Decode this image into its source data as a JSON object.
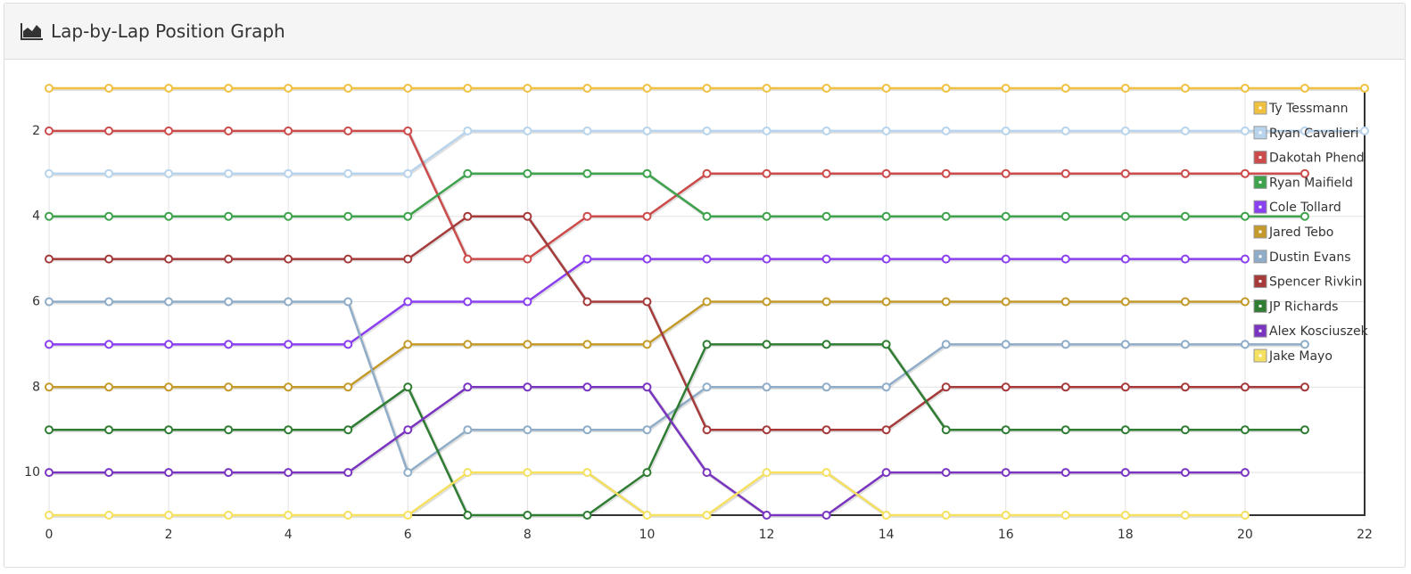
{
  "chart_data": {
    "type": "line",
    "title": "Lap-by-Lap Position Graph",
    "x": [
      0,
      1,
      2,
      3,
      4,
      5,
      6,
      7,
      8,
      9,
      10,
      11,
      12,
      13,
      14,
      15,
      16,
      17,
      18,
      19,
      20,
      21,
      22
    ],
    "xlim": [
      0,
      22
    ],
    "xticks": [
      0,
      2,
      4,
      6,
      8,
      10,
      12,
      14,
      16,
      18,
      20,
      22
    ],
    "ylim": [
      1,
      11
    ],
    "yticks": [
      2,
      4,
      6,
      8,
      10
    ],
    "y_reversed": true,
    "grid": true,
    "legend": "top-right",
    "series": [
      {
        "name": "Ty Tessmann",
        "color": "#f0c040",
        "values": [
          1,
          1,
          1,
          1,
          1,
          1,
          1,
          1,
          1,
          1,
          1,
          1,
          1,
          1,
          1,
          1,
          1,
          1,
          1,
          1,
          1,
          1,
          1
        ]
      },
      {
        "name": "Ryan Cavalieri",
        "color": "#b8d4ec",
        "values": [
          3,
          3,
          3,
          3,
          3,
          3,
          3,
          2,
          2,
          2,
          2,
          2,
          2,
          2,
          2,
          2,
          2,
          2,
          2,
          2,
          2,
          2,
          2
        ]
      },
      {
        "name": "Dakotah Phend",
        "color": "#cc4b4b",
        "values": [
          2,
          2,
          2,
          2,
          2,
          2,
          2,
          5,
          5,
          4,
          4,
          3,
          3,
          3,
          3,
          3,
          3,
          3,
          3,
          3,
          3,
          3,
          null
        ]
      },
      {
        "name": "Ryan Maifield",
        "color": "#3fa34d",
        "values": [
          4,
          4,
          4,
          4,
          4,
          4,
          4,
          3,
          3,
          3,
          3,
          4,
          4,
          4,
          4,
          4,
          4,
          4,
          4,
          4,
          4,
          4,
          null
        ]
      },
      {
        "name": "Cole Tollard",
        "color": "#8a3ff0",
        "values": [
          7,
          7,
          7,
          7,
          7,
          7,
          6,
          6,
          6,
          5,
          5,
          5,
          5,
          5,
          5,
          5,
          5,
          5,
          5,
          5,
          5,
          null,
          null
        ]
      },
      {
        "name": "Jared Tebo",
        "color": "#c49a2a",
        "values": [
          8,
          8,
          8,
          8,
          8,
          8,
          7,
          7,
          7,
          7,
          7,
          6,
          6,
          6,
          6,
          6,
          6,
          6,
          6,
          6,
          6,
          null,
          null
        ]
      },
      {
        "name": "Dustin Evans",
        "color": "#8fadc8",
        "values": [
          6,
          6,
          6,
          6,
          6,
          6,
          10,
          9,
          9,
          9,
          9,
          8,
          8,
          8,
          8,
          7,
          7,
          7,
          7,
          7,
          7,
          7,
          null
        ]
      },
      {
        "name": "Spencer Rivkin",
        "color": "#a53a3a",
        "values": [
          5,
          5,
          5,
          5,
          5,
          5,
          5,
          4,
          4,
          6,
          6,
          9,
          9,
          9,
          9,
          8,
          8,
          8,
          8,
          8,
          8,
          8,
          null
        ]
      },
      {
        "name": "JP Richards",
        "color": "#2f7d32",
        "values": [
          9,
          9,
          9,
          9,
          9,
          9,
          8,
          11,
          11,
          11,
          10,
          7,
          7,
          7,
          7,
          9,
          9,
          9,
          9,
          9,
          9,
          9,
          null
        ]
      },
      {
        "name": "Alex Kosciuszek",
        "color": "#7a35c0",
        "values": [
          10,
          10,
          10,
          10,
          10,
          10,
          9,
          8,
          8,
          8,
          8,
          10,
          11,
          11,
          10,
          10,
          10,
          10,
          10,
          10,
          10,
          null,
          null
        ]
      },
      {
        "name": "Jake Mayo",
        "color": "#f5e060",
        "values": [
          11,
          11,
          11,
          11,
          11,
          11,
          11,
          10,
          10,
          10,
          11,
          11,
          10,
          10,
          11,
          11,
          11,
          11,
          11,
          11,
          11,
          null,
          null
        ]
      }
    ]
  }
}
